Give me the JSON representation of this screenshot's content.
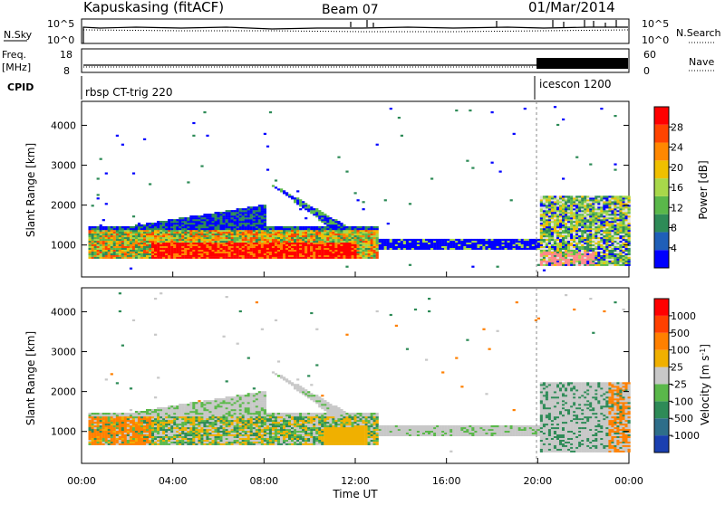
{
  "header": {
    "station": "Kapuskasing (fitACF)",
    "beam": "Beam 07",
    "date": "01/Mar/2014"
  },
  "strips": {
    "nsky_label": "N.Sky",
    "nsky_ticks": [
      "10^5",
      "10^0"
    ],
    "nsearch_label": "N.Search",
    "nsearch_ticks": [
      "10^5",
      "10^0"
    ],
    "freq_label_1": "Freq.",
    "freq_label_2": "[MHz]",
    "freq_ticks": [
      "18",
      "8"
    ],
    "nave_label": "Nave",
    "nave_ticks": [
      "60",
      "0"
    ],
    "cpid_label": "CPID",
    "cpid_segments": [
      {
        "name": "rbsp CT-trig 220",
        "start_hour": 0
      },
      {
        "name": "icescon 1200",
        "start_hour": 20.1
      }
    ]
  },
  "xaxis": {
    "label": "Time UT",
    "ticks": [
      "00:00",
      "04:00",
      "08:00",
      "12:00",
      "16:00",
      "20:00",
      "00:00"
    ]
  },
  "chart_data": [
    {
      "type": "heatmap",
      "panel": "power",
      "ylabel": "Slant Range [km]",
      "xlabel": "Time UT",
      "xlim_hours": [
        0,
        24
      ],
      "ylim": [
        200,
        4600
      ],
      "yticks": [
        "4000",
        "3000",
        "2000",
        "1000"
      ],
      "colorbar_label": "Power [dB]",
      "colorbar_ticks": [
        "28",
        "24",
        "20",
        "16",
        "12",
        "8",
        "4"
      ],
      "colors": [
        "#0000ff",
        "#1f5fb8",
        "#2e8b57",
        "#5ab84a",
        "#a8d84a",
        "#f0c000",
        "#ff8800",
        "#ff4400",
        "#ff0000"
      ],
      "regions": [
        {
          "t0": 0.3,
          "t1": 13.0,
          "r0": 600,
          "r1": 1500,
          "level": "high"
        },
        {
          "t0": 13.0,
          "t1": 20.0,
          "r0": 900,
          "r1": 1100,
          "level": "low"
        },
        {
          "t0": 20.0,
          "t1": 24.0,
          "r0": 500,
          "r1": 2200,
          "level": "mixed"
        }
      ]
    },
    {
      "type": "heatmap",
      "panel": "velocity",
      "ylabel": "Slant Range [km]",
      "xlabel": "Time UT",
      "xlim_hours": [
        0,
        24
      ],
      "ylim": [
        200,
        4600
      ],
      "yticks": [
        "4000",
        "3000",
        "2000",
        "1000"
      ],
      "colorbar_label": "Velocity [m s-1]",
      "colorbar_ticks": [
        "1000",
        "500",
        "100",
        "25",
        "-25",
        "-100",
        "-500",
        "-1000"
      ],
      "colors": [
        "#1a3fb0",
        "#2e6e8a",
        "#2e8b57",
        "#5ab84a",
        "#c8c8c8",
        "#f0b000",
        "#ff8000",
        "#ff4000",
        "#ff0000"
      ]
    }
  ]
}
